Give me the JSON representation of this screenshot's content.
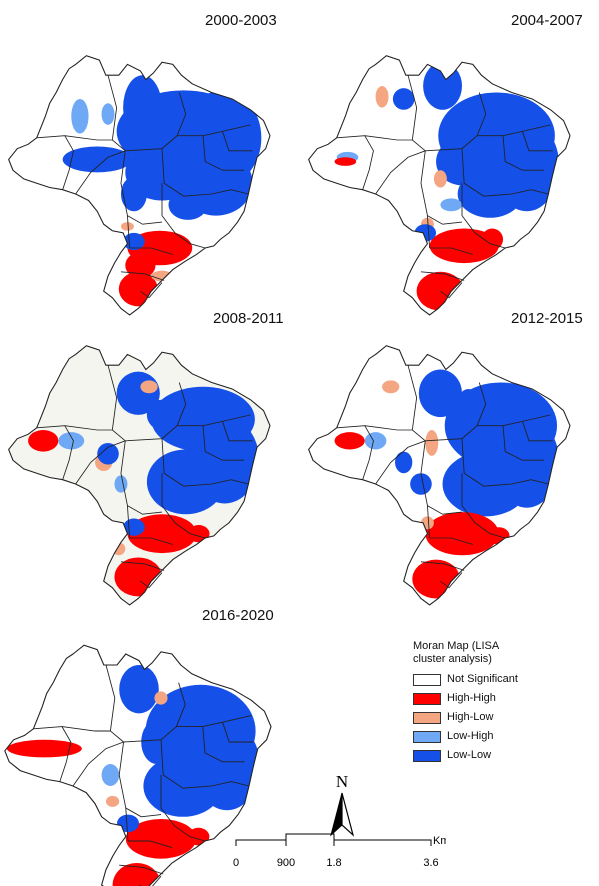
{
  "maps": [
    {
      "period": "2000-2003"
    },
    {
      "period": "2004-2007"
    },
    {
      "period": "2008-2011"
    },
    {
      "period": "2012-2015"
    },
    {
      "period": "2016-2020"
    }
  ],
  "legend": {
    "title_line1": "Moran Map (LISA",
    "title_line2": "cluster analysis)",
    "items": [
      {
        "label": "Not Significant",
        "color": "#ffffff"
      },
      {
        "label": "High-High",
        "color": "#ff0000"
      },
      {
        "label": "High-Low",
        "color": "#f4a582"
      },
      {
        "label": "Low-High",
        "color": "#6fa8f5"
      },
      {
        "label": "Low-Low",
        "color": "#1550e8"
      }
    ]
  },
  "north_arrow": {
    "label": "N"
  },
  "scale_bar": {
    "unit": "Km",
    "ticks": [
      "0",
      "900",
      "1.8",
      "3.6"
    ]
  },
  "colors": {
    "not_significant": "#ffffff",
    "not_significant_alt": "#f5f5f0",
    "high_high": "#ff0000",
    "high_low": "#f4a582",
    "low_high": "#6fa8f5",
    "low_low": "#1550e8",
    "border": "#222222"
  }
}
